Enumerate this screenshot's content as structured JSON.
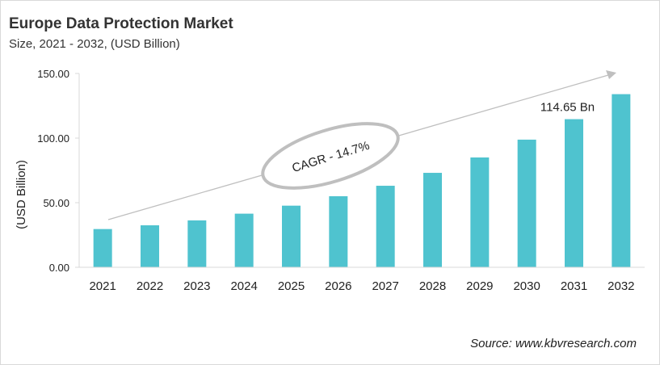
{
  "chart_data": {
    "type": "bar",
    "title": "Europe Data Protection Market",
    "subtitle": "Size, 2021 - 2032, (USD Billion)",
    "xlabel": "",
    "ylabel": "(USD Billion)",
    "ylim": [
      0,
      150
    ],
    "yticks": [
      "0.00",
      "50.00",
      "100.00",
      "150.00"
    ],
    "categories": [
      "2021",
      "2022",
      "2023",
      "2024",
      "2025",
      "2026",
      "2027",
      "2028",
      "2029",
      "2030",
      "2031",
      "2032"
    ],
    "values": [
      29.6,
      32.5,
      36.3,
      41.5,
      47.7,
      55.0,
      63.1,
      73.1,
      85.0,
      98.8,
      114.65,
      134.0
    ],
    "bar_color": "#4fc3cf",
    "data_label": {
      "category": "2031",
      "text": "114.65 Bn"
    },
    "annotation": "CAGR - 14.7%",
    "grid": false,
    "source": "Source: www.kbvresearch.com"
  }
}
